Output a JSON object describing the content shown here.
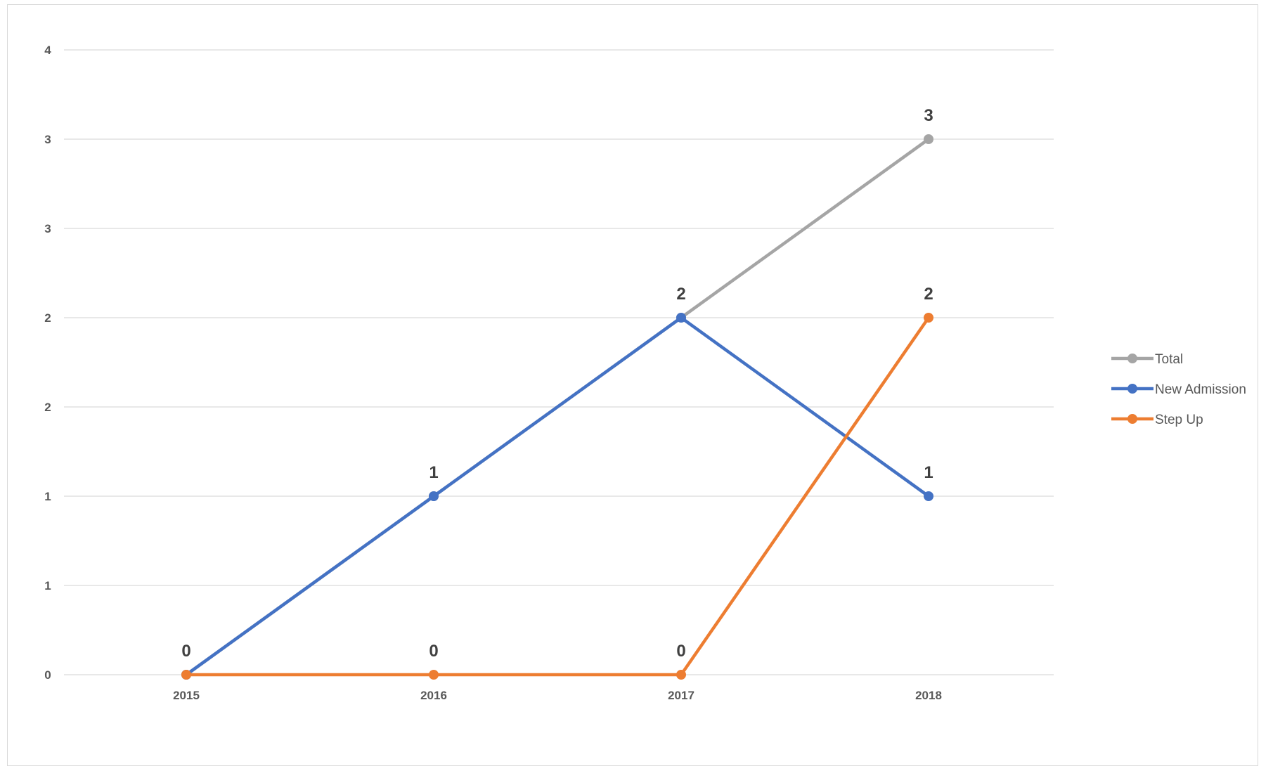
{
  "chart_data": {
    "type": "line",
    "title": "",
    "xlabel": "",
    "ylabel": "",
    "categories": [
      "2015",
      "2016",
      "2017",
      "2018"
    ],
    "ylim": [
      0,
      3.5
    ],
    "y_tick_values": [
      0,
      0.5,
      1,
      1.5,
      2,
      2.5,
      3,
      3.5
    ],
    "y_tick_labels": [
      "0",
      "1",
      "1",
      "2",
      "2",
      "3",
      "3",
      "4"
    ],
    "grid": true,
    "legend_position": "right",
    "series": [
      {
        "name": "Total",
        "color": "#a5a5a5",
        "values": [
          0,
          1,
          2,
          3
        ],
        "data_labels": [
          "",
          "",
          "",
          "3"
        ]
      },
      {
        "name": "New Admission",
        "color": "#4472c4",
        "values": [
          0,
          1,
          2,
          1
        ],
        "data_labels": [
          "",
          "1",
          "2",
          "1"
        ]
      },
      {
        "name": "Step Up",
        "color": "#ed7d31",
        "values": [
          0,
          0,
          0,
          2
        ],
        "data_labels": [
          "0",
          "0",
          "0",
          "2"
        ]
      }
    ]
  }
}
